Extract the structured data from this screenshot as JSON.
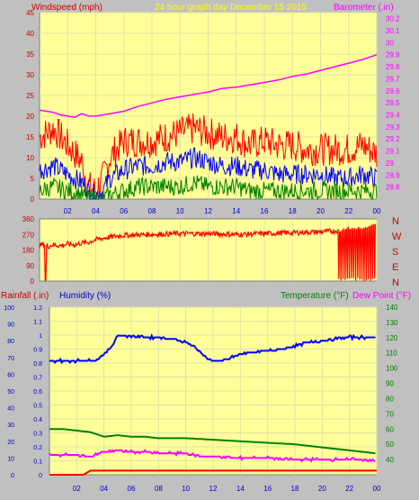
{
  "colors": {
    "panel": "#c0c0c0",
    "plot_bg": "#ffff99",
    "grid": "#e0e0a8",
    "red": "#ff0000",
    "blue": "#0000ff",
    "green": "#008000",
    "magenta": "#ff00ff",
    "yellow": "#ffff00",
    "label_red": "#cc0000",
    "label_blue": "#0000cc"
  },
  "header": {
    "windspeed_label": "Windspeed (mph)",
    "subtitle": "24 hour graph day   December 15 2015",
    "barometer_label": "Barometer (.in)"
  },
  "wind_dir": {
    "letters": [
      "N",
      "W",
      "S",
      "E",
      "N"
    ]
  },
  "bottom_header": {
    "rainfall_label": "Rainfall (.in)",
    "humidity_label": "Humidity (%)",
    "temperature_label": "Temperature (°F)",
    "dewpoint_label": "Dew Point (°F)"
  },
  "chart_data": [
    {
      "type": "line",
      "title": "24 hour graph day   December 15 2015",
      "x_ticks": [
        "02",
        "04",
        "06",
        "08",
        "10",
        "12",
        "14",
        "16",
        "18",
        "20",
        "22",
        "00"
      ],
      "y_left": {
        "label": "Windspeed (mph)",
        "ticks": [
          "0",
          "5",
          "10",
          "15",
          "20",
          "25",
          "30",
          "35",
          "40",
          "45"
        ],
        "ylim": [
          0,
          45
        ]
      },
      "y_right": {
        "label": "Barometer (.in)",
        "ticks": [
          "28.8",
          "28.9",
          "29",
          "29.1",
          "29.2",
          "29.3",
          "29.4",
          "29.5",
          "29.6",
          "29.7",
          "29.8",
          "29.9",
          "30",
          "30.1",
          "30.2"
        ],
        "ylim": [
          28.7,
          30.25
        ]
      },
      "series": [
        {
          "name": "Barometer (.in)",
          "axis": "right",
          "x": [
            0,
            0.5,
            1.0,
            1.5,
            2.0,
            2.5,
            3.0,
            3.5,
            4.0,
            5.0,
            6.0,
            7.0,
            8.0,
            9.0,
            10.0,
            11.0,
            12.0,
            13.0,
            14.0,
            15.0,
            16.0,
            17.0,
            18.0,
            19.0,
            20.0,
            21.0,
            22.0,
            23.0,
            24.0
          ],
          "values": [
            29.44,
            29.43,
            29.42,
            29.4,
            29.39,
            29.38,
            29.41,
            29.39,
            29.39,
            29.41,
            29.43,
            29.47,
            29.5,
            29.53,
            29.55,
            29.57,
            29.59,
            29.62,
            29.63,
            29.65,
            29.67,
            29.69,
            29.72,
            29.74,
            29.77,
            29.8,
            29.83,
            29.86,
            29.9
          ]
        },
        {
          "name": "Gust",
          "axis": "left",
          "x": [
            0,
            1,
            2,
            3,
            3.5,
            4,
            4.5,
            5,
            6,
            7,
            8,
            9,
            10,
            11,
            12,
            13,
            14,
            15,
            16,
            17,
            18,
            19,
            20,
            21,
            22,
            23,
            24
          ],
          "values": [
            15,
            17,
            13,
            9,
            3,
            2,
            5,
            10,
            14,
            14,
            14,
            15,
            16,
            17,
            16,
            15,
            15,
            13,
            14,
            13,
            13,
            12,
            12,
            12,
            12,
            13,
            11
          ]
        },
        {
          "name": "Average",
          "axis": "left",
          "x": [
            0,
            1,
            2,
            3,
            3.5,
            4,
            4.5,
            5,
            6,
            7,
            8,
            9,
            10,
            11,
            12,
            13,
            14,
            15,
            16,
            17,
            18,
            19,
            20,
            21,
            22,
            23,
            24
          ],
          "values": [
            7,
            8,
            6,
            4,
            2,
            1,
            2,
            5,
            7,
            8,
            8,
            9,
            9,
            10,
            9,
            8,
            8,
            7,
            7,
            6,
            6,
            6,
            6,
            5,
            5,
            6,
            5
          ]
        },
        {
          "name": "Wind",
          "axis": "left",
          "x": [
            0,
            1,
            2,
            3,
            3.5,
            4,
            4.5,
            5,
            6,
            7,
            8,
            9,
            10,
            11,
            12,
            13,
            14,
            15,
            16,
            17,
            18,
            19,
            20,
            21,
            22,
            23,
            24
          ],
          "values": [
            2,
            3,
            2,
            1,
            0,
            0,
            0,
            1,
            2,
            3,
            3,
            3,
            3,
            4,
            3,
            3,
            3,
            2,
            2,
            2,
            2,
            2,
            2,
            2,
            2,
            2,
            2
          ]
        }
      ]
    },
    {
      "type": "line",
      "y_left": {
        "ticks": [
          "0",
          "90",
          "180",
          "270",
          "360"
        ],
        "ylim": [
          0,
          360
        ]
      },
      "series": [
        {
          "name": "Wind direction",
          "x": [
            0,
            0.3,
            0.6,
            1,
            1.5,
            2,
            2.5,
            3,
            3.5,
            4,
            5,
            6,
            8,
            10,
            12,
            14,
            16,
            18,
            20,
            21,
            22,
            23,
            24
          ],
          "values": [
            205,
            215,
            200,
            210,
            205,
            215,
            210,
            220,
            225,
            240,
            255,
            265,
            270,
            275,
            275,
            270,
            275,
            280,
            285,
            290,
            300,
            310,
            320
          ]
        }
      ]
    },
    {
      "type": "line",
      "x_ticks": [
        "02",
        "04",
        "06",
        "08",
        "10",
        "12",
        "14",
        "16",
        "18",
        "20",
        "22",
        "00"
      ],
      "y_left_humidity": {
        "label": "Humidity (%)",
        "ticks": [
          "0",
          "10",
          "20",
          "30",
          "40",
          "50",
          "60",
          "70",
          "80",
          "90",
          "100"
        ],
        "ylim": [
          0,
          100
        ]
      },
      "y_left_rain": {
        "label": "Rainfall (.in)",
        "ticks": [
          "0",
          "0.1",
          "0.2",
          "0.3",
          "0.4",
          "0.5",
          "0.6",
          "0.7",
          "0.8",
          "0.9",
          "1",
          "1.1",
          "1.2"
        ],
        "ylim": [
          0,
          1.2
        ]
      },
      "y_right": {
        "label": "Temperature (°F)",
        "ticks": [
          "40",
          "50",
          "60",
          "70",
          "80",
          "90",
          "100",
          "110",
          "120",
          "130",
          "140"
        ],
        "ylim": [
          30,
          140
        ]
      },
      "series": [
        {
          "name": "Humidity (%)",
          "axis": "humidity",
          "x": [
            0,
            1,
            2,
            3,
            3.5,
            4,
            4.5,
            5,
            5.5,
            6,
            7,
            8,
            9,
            10,
            10.5,
            11,
            11.5,
            12,
            12.5,
            13,
            14,
            15,
            16,
            17,
            18,
            19,
            20,
            21,
            22,
            23,
            24
          ],
          "values": [
            68,
            68,
            68,
            68,
            69,
            72,
            76,
            83,
            83,
            83,
            82,
            82,
            81,
            79,
            77,
            74,
            70,
            68,
            68,
            69,
            72,
            73,
            74,
            75,
            77,
            79,
            80,
            81,
            82,
            82,
            82
          ]
        },
        {
          "name": "Temperature (°F)",
          "axis": "right",
          "x": [
            0,
            1,
            2,
            3,
            4,
            5,
            6,
            7,
            8,
            10,
            12,
            14,
            16,
            18,
            20,
            22,
            24
          ],
          "values": [
            60,
            60,
            59,
            58,
            55,
            56,
            55,
            55,
            54,
            54,
            53,
            52,
            51,
            50,
            48,
            46,
            44
          ]
        },
        {
          "name": "Dew Point (°F)",
          "axis": "right",
          "x": [
            0,
            1,
            2,
            3,
            4,
            5,
            6,
            7,
            8,
            9,
            10,
            11,
            12,
            14,
            16,
            18,
            20,
            22,
            23,
            24
          ],
          "values": [
            43,
            43,
            43,
            42,
            45,
            46,
            45,
            45,
            44,
            44,
            44,
            42,
            42,
            41,
            41,
            40,
            40,
            40,
            40,
            39
          ]
        },
        {
          "name": "Rainfall (.in)",
          "axis": "rain",
          "x": [
            0,
            2.5,
            3,
            4,
            5,
            24
          ],
          "values": [
            0,
            0,
            0.03,
            0.03,
            0.03,
            0.03
          ]
        }
      ]
    }
  ]
}
